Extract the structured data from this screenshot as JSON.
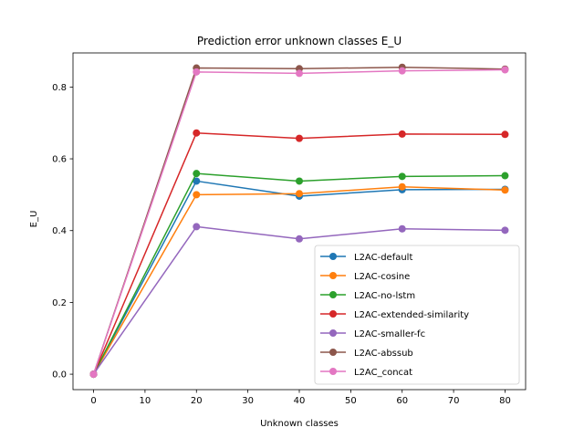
{
  "chart_data": {
    "type": "line",
    "title": "Prediction error unknown classes E_U",
    "xlabel": "Unknown classes",
    "ylabel": "E_U",
    "xlim": [
      -4,
      84
    ],
    "ylim": [
      -0.043,
      0.895
    ],
    "xticks": [
      0,
      10,
      20,
      30,
      40,
      50,
      60,
      70,
      80
    ],
    "yticks": [
      0.0,
      0.2,
      0.4,
      0.6,
      0.8
    ],
    "ytick_labels": [
      "0.0",
      "0.2",
      "0.4",
      "0.6",
      "0.8"
    ],
    "grid": false,
    "legend_position": "lower-right",
    "x": [
      0,
      20,
      40,
      60,
      80
    ],
    "series": [
      {
        "name": "L2AC-default",
        "color": "#1f77b4",
        "values": [
          0.0,
          0.538,
          0.496,
          0.514,
          0.515
        ]
      },
      {
        "name": "L2AC-cosine",
        "color": "#ff7f0e",
        "values": [
          0.0,
          0.5,
          0.503,
          0.522,
          0.513
        ]
      },
      {
        "name": "L2AC-no-lstm",
        "color": "#2ca02c",
        "values": [
          0.0,
          0.559,
          0.538,
          0.551,
          0.553
        ]
      },
      {
        "name": "L2AC-extended-similarity",
        "color": "#d62728",
        "values": [
          0.0,
          0.672,
          0.657,
          0.669,
          0.668
        ]
      },
      {
        "name": "L2AC-smaller-fc",
        "color": "#9467bd",
        "values": [
          0.0,
          0.411,
          0.377,
          0.405,
          0.401
        ]
      },
      {
        "name": "L2AC-abssub",
        "color": "#8c564b",
        "values": [
          0.0,
          0.853,
          0.851,
          0.855,
          0.85
        ]
      },
      {
        "name": "L2AC_concat",
        "color": "#e377c2",
        "values": [
          0.0,
          0.842,
          0.838,
          0.845,
          0.848
        ]
      }
    ]
  }
}
